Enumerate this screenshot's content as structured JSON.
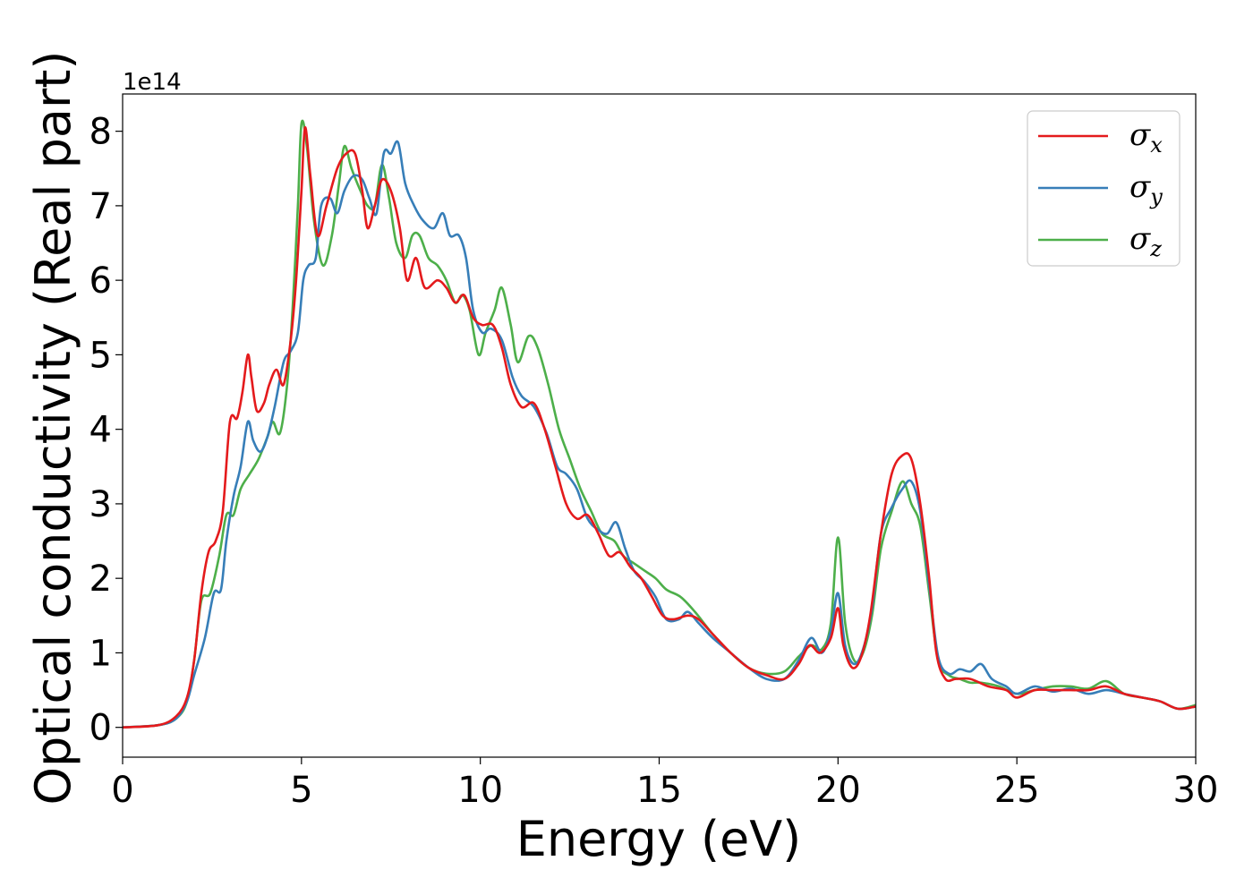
{
  "chart_data": {
    "type": "line",
    "title": "",
    "xlabel": "Energy (eV)",
    "ylabel": "Optical conductivity (Real part)",
    "y_offset_text": "1e14",
    "xlim": [
      0,
      30
    ],
    "ylim": [
      -0.4,
      8.5
    ],
    "x_ticks": [
      0,
      5,
      10,
      15,
      20,
      25,
      30
    ],
    "y_ticks": [
      0,
      1,
      2,
      3,
      4,
      5,
      6,
      7,
      8
    ],
    "grid": false,
    "legend_position": "top-right",
    "series": [
      {
        "name": "σx",
        "symbol": "σ",
        "subscript": "x",
        "color": "#e41a1c",
        "points": [
          [
            0,
            0
          ],
          [
            1,
            0.03
          ],
          [
            1.5,
            0.15
          ],
          [
            1.8,
            0.4
          ],
          [
            2.0,
            0.9
          ],
          [
            2.2,
            1.8
          ],
          [
            2.4,
            2.35
          ],
          [
            2.6,
            2.5
          ],
          [
            2.8,
            2.9
          ],
          [
            3.0,
            4.1
          ],
          [
            3.2,
            4.15
          ],
          [
            3.35,
            4.5
          ],
          [
            3.5,
            5.0
          ],
          [
            3.6,
            4.7
          ],
          [
            3.75,
            4.25
          ],
          [
            3.95,
            4.35
          ],
          [
            4.1,
            4.6
          ],
          [
            4.3,
            4.8
          ],
          [
            4.5,
            4.6
          ],
          [
            4.7,
            5.2
          ],
          [
            4.85,
            6.0
          ],
          [
            5.0,
            7.2
          ],
          [
            5.1,
            8.05
          ],
          [
            5.25,
            7.4
          ],
          [
            5.45,
            6.6
          ],
          [
            5.7,
            7.0
          ],
          [
            6.0,
            7.5
          ],
          [
            6.25,
            7.7
          ],
          [
            6.5,
            7.7
          ],
          [
            6.7,
            7.2
          ],
          [
            6.85,
            6.7
          ],
          [
            7.05,
            7.0
          ],
          [
            7.25,
            7.35
          ],
          [
            7.5,
            7.2
          ],
          [
            7.75,
            6.7
          ],
          [
            7.95,
            6.0
          ],
          [
            8.2,
            6.3
          ],
          [
            8.45,
            5.9
          ],
          [
            8.8,
            6.0
          ],
          [
            9.05,
            5.9
          ],
          [
            9.3,
            5.7
          ],
          [
            9.55,
            5.8
          ],
          [
            9.8,
            5.5
          ],
          [
            10.05,
            5.4
          ],
          [
            10.35,
            5.4
          ],
          [
            10.6,
            5.1
          ],
          [
            10.85,
            4.6
          ],
          [
            11.15,
            4.3
          ],
          [
            11.5,
            4.35
          ],
          [
            11.8,
            4.0
          ],
          [
            12.1,
            3.5
          ],
          [
            12.4,
            3.0
          ],
          [
            12.7,
            2.8
          ],
          [
            13.0,
            2.85
          ],
          [
            13.3,
            2.6
          ],
          [
            13.6,
            2.3
          ],
          [
            13.9,
            2.35
          ],
          [
            14.2,
            2.15
          ],
          [
            14.5,
            2.0
          ],
          [
            14.8,
            1.75
          ],
          [
            15.1,
            1.5
          ],
          [
            15.4,
            1.45
          ],
          [
            15.8,
            1.5
          ],
          [
            16.1,
            1.45
          ],
          [
            16.5,
            1.25
          ],
          [
            17.0,
            1.0
          ],
          [
            17.5,
            0.8
          ],
          [
            18.0,
            0.7
          ],
          [
            18.5,
            0.65
          ],
          [
            18.9,
            0.85
          ],
          [
            19.2,
            1.1
          ],
          [
            19.5,
            1.0
          ],
          [
            19.8,
            1.2
          ],
          [
            20.0,
            1.6
          ],
          [
            20.15,
            1.1
          ],
          [
            20.4,
            0.8
          ],
          [
            20.65,
            0.95
          ],
          [
            20.9,
            1.5
          ],
          [
            21.2,
            2.6
          ],
          [
            21.5,
            3.4
          ],
          [
            21.8,
            3.65
          ],
          [
            22.05,
            3.6
          ],
          [
            22.3,
            3.0
          ],
          [
            22.55,
            2.0
          ],
          [
            22.75,
            1.0
          ],
          [
            23.0,
            0.65
          ],
          [
            23.3,
            0.65
          ],
          [
            23.7,
            0.65
          ],
          [
            24.2,
            0.55
          ],
          [
            24.7,
            0.5
          ],
          [
            25.0,
            0.4
          ],
          [
            25.5,
            0.5
          ],
          [
            26.0,
            0.5
          ],
          [
            26.5,
            0.5
          ],
          [
            27.0,
            0.5
          ],
          [
            27.5,
            0.55
          ],
          [
            28.0,
            0.45
          ],
          [
            28.5,
            0.4
          ],
          [
            29.0,
            0.35
          ],
          [
            29.5,
            0.25
          ],
          [
            30.0,
            0.28
          ]
        ]
      },
      {
        "name": "σy",
        "symbol": "σ",
        "subscript": "y",
        "color": "#377eb8",
        "points": [
          [
            0,
            0
          ],
          [
            1,
            0.03
          ],
          [
            1.5,
            0.12
          ],
          [
            1.8,
            0.35
          ],
          [
            2.0,
            0.7
          ],
          [
            2.3,
            1.2
          ],
          [
            2.55,
            1.8
          ],
          [
            2.75,
            1.85
          ],
          [
            2.9,
            2.5
          ],
          [
            3.1,
            3.1
          ],
          [
            3.3,
            3.5
          ],
          [
            3.5,
            4.1
          ],
          [
            3.65,
            3.85
          ],
          [
            3.85,
            3.7
          ],
          [
            4.05,
            3.9
          ],
          [
            4.25,
            4.3
          ],
          [
            4.5,
            4.9
          ],
          [
            4.7,
            5.05
          ],
          [
            4.9,
            5.3
          ],
          [
            5.05,
            6.0
          ],
          [
            5.2,
            6.2
          ],
          [
            5.4,
            6.3
          ],
          [
            5.55,
            7.0
          ],
          [
            5.8,
            7.1
          ],
          [
            6.0,
            6.9
          ],
          [
            6.2,
            7.2
          ],
          [
            6.45,
            7.4
          ],
          [
            6.7,
            7.35
          ],
          [
            6.9,
            7.1
          ],
          [
            7.1,
            6.9
          ],
          [
            7.3,
            7.7
          ],
          [
            7.5,
            7.7
          ],
          [
            7.7,
            7.85
          ],
          [
            7.9,
            7.3
          ],
          [
            8.15,
            7.0
          ],
          [
            8.4,
            6.8
          ],
          [
            8.7,
            6.7
          ],
          [
            8.95,
            6.9
          ],
          [
            9.15,
            6.6
          ],
          [
            9.4,
            6.6
          ],
          [
            9.6,
            6.3
          ],
          [
            9.8,
            5.6
          ],
          [
            10.05,
            5.3
          ],
          [
            10.3,
            5.35
          ],
          [
            10.6,
            5.2
          ],
          [
            10.9,
            4.7
          ],
          [
            11.15,
            4.45
          ],
          [
            11.5,
            4.3
          ],
          [
            11.85,
            3.95
          ],
          [
            12.15,
            3.5
          ],
          [
            12.4,
            3.4
          ],
          [
            12.7,
            3.2
          ],
          [
            13.0,
            2.8
          ],
          [
            13.3,
            2.65
          ],
          [
            13.55,
            2.6
          ],
          [
            13.8,
            2.75
          ],
          [
            14.05,
            2.4
          ],
          [
            14.3,
            2.1
          ],
          [
            14.6,
            1.95
          ],
          [
            14.9,
            1.75
          ],
          [
            15.2,
            1.45
          ],
          [
            15.55,
            1.45
          ],
          [
            15.8,
            1.55
          ],
          [
            16.1,
            1.4
          ],
          [
            16.5,
            1.2
          ],
          [
            17.0,
            1.0
          ],
          [
            17.5,
            0.8
          ],
          [
            18.0,
            0.65
          ],
          [
            18.5,
            0.65
          ],
          [
            18.9,
            0.9
          ],
          [
            19.25,
            1.2
          ],
          [
            19.55,
            1.0
          ],
          [
            19.8,
            1.3
          ],
          [
            20.0,
            1.8
          ],
          [
            20.2,
            1.1
          ],
          [
            20.45,
            0.85
          ],
          [
            20.7,
            1.05
          ],
          [
            20.95,
            1.6
          ],
          [
            21.2,
            2.6
          ],
          [
            21.5,
            2.95
          ],
          [
            21.8,
            3.2
          ],
          [
            22.05,
            3.3
          ],
          [
            22.3,
            2.9
          ],
          [
            22.55,
            1.9
          ],
          [
            22.8,
            0.95
          ],
          [
            23.1,
            0.72
          ],
          [
            23.4,
            0.78
          ],
          [
            23.7,
            0.75
          ],
          [
            24.0,
            0.85
          ],
          [
            24.3,
            0.65
          ],
          [
            24.7,
            0.55
          ],
          [
            25.0,
            0.45
          ],
          [
            25.5,
            0.55
          ],
          [
            26.0,
            0.48
          ],
          [
            26.5,
            0.52
          ],
          [
            27.0,
            0.45
          ],
          [
            27.5,
            0.5
          ],
          [
            28.0,
            0.45
          ],
          [
            28.5,
            0.4
          ],
          [
            29.0,
            0.35
          ],
          [
            29.5,
            0.25
          ],
          [
            30.0,
            0.28
          ]
        ]
      },
      {
        "name": "σz",
        "symbol": "σ",
        "subscript": "z",
        "color": "#4daf4a",
        "points": [
          [
            0,
            0
          ],
          [
            1,
            0.03
          ],
          [
            1.5,
            0.12
          ],
          [
            1.8,
            0.35
          ],
          [
            2.0,
            0.9
          ],
          [
            2.2,
            1.7
          ],
          [
            2.45,
            1.8
          ],
          [
            2.7,
            2.3
          ],
          [
            2.9,
            2.85
          ],
          [
            3.1,
            2.85
          ],
          [
            3.3,
            3.2
          ],
          [
            3.55,
            3.4
          ],
          [
            3.8,
            3.6
          ],
          [
            4.05,
            3.9
          ],
          [
            4.2,
            4.1
          ],
          [
            4.4,
            3.95
          ],
          [
            4.6,
            4.6
          ],
          [
            4.75,
            5.6
          ],
          [
            4.9,
            7.0
          ],
          [
            5.0,
            8.1
          ],
          [
            5.15,
            7.8
          ],
          [
            5.35,
            6.8
          ],
          [
            5.6,
            6.2
          ],
          [
            5.85,
            6.6
          ],
          [
            6.05,
            7.3
          ],
          [
            6.2,
            7.8
          ],
          [
            6.4,
            7.5
          ],
          [
            6.65,
            7.2
          ],
          [
            6.85,
            7.0
          ],
          [
            7.05,
            7.0
          ],
          [
            7.25,
            7.55
          ],
          [
            7.45,
            7.1
          ],
          [
            7.65,
            6.5
          ],
          [
            7.9,
            6.3
          ],
          [
            8.1,
            6.6
          ],
          [
            8.3,
            6.6
          ],
          [
            8.55,
            6.3
          ],
          [
            8.8,
            6.2
          ],
          [
            9.05,
            6.0
          ],
          [
            9.3,
            5.7
          ],
          [
            9.5,
            5.8
          ],
          [
            9.7,
            5.6
          ],
          [
            9.95,
            5.0
          ],
          [
            10.15,
            5.3
          ],
          [
            10.4,
            5.6
          ],
          [
            10.6,
            5.9
          ],
          [
            10.85,
            5.4
          ],
          [
            11.05,
            4.9
          ],
          [
            11.35,
            5.25
          ],
          [
            11.6,
            5.1
          ],
          [
            11.9,
            4.6
          ],
          [
            12.2,
            4.0
          ],
          [
            12.5,
            3.6
          ],
          [
            12.8,
            3.2
          ],
          [
            13.1,
            2.9
          ],
          [
            13.4,
            2.6
          ],
          [
            13.75,
            2.5
          ],
          [
            14.0,
            2.3
          ],
          [
            14.3,
            2.2
          ],
          [
            14.6,
            2.1
          ],
          [
            14.9,
            2.0
          ],
          [
            15.2,
            1.85
          ],
          [
            15.6,
            1.75
          ],
          [
            16.0,
            1.55
          ],
          [
            16.5,
            1.25
          ],
          [
            17.0,
            1.0
          ],
          [
            17.5,
            0.8
          ],
          [
            18.0,
            0.72
          ],
          [
            18.5,
            0.75
          ],
          [
            18.9,
            0.95
          ],
          [
            19.25,
            1.1
          ],
          [
            19.55,
            1.05
          ],
          [
            19.8,
            1.4
          ],
          [
            20.0,
            2.55
          ],
          [
            20.2,
            1.4
          ],
          [
            20.45,
            0.9
          ],
          [
            20.7,
            1.0
          ],
          [
            20.95,
            1.5
          ],
          [
            21.2,
            2.4
          ],
          [
            21.5,
            2.9
          ],
          [
            21.8,
            3.3
          ],
          [
            22.05,
            3.0
          ],
          [
            22.3,
            2.7
          ],
          [
            22.55,
            1.8
          ],
          [
            22.8,
            0.9
          ],
          [
            23.1,
            0.7
          ],
          [
            23.4,
            0.65
          ],
          [
            23.7,
            0.6
          ],
          [
            24.0,
            0.6
          ],
          [
            24.5,
            0.55
          ],
          [
            25.0,
            0.45
          ],
          [
            25.5,
            0.5
          ],
          [
            26.0,
            0.55
          ],
          [
            26.5,
            0.55
          ],
          [
            27.0,
            0.52
          ],
          [
            27.5,
            0.62
          ],
          [
            28.0,
            0.45
          ],
          [
            28.5,
            0.4
          ],
          [
            29.0,
            0.35
          ],
          [
            29.5,
            0.25
          ],
          [
            30.0,
            0.3
          ]
        ]
      }
    ]
  }
}
